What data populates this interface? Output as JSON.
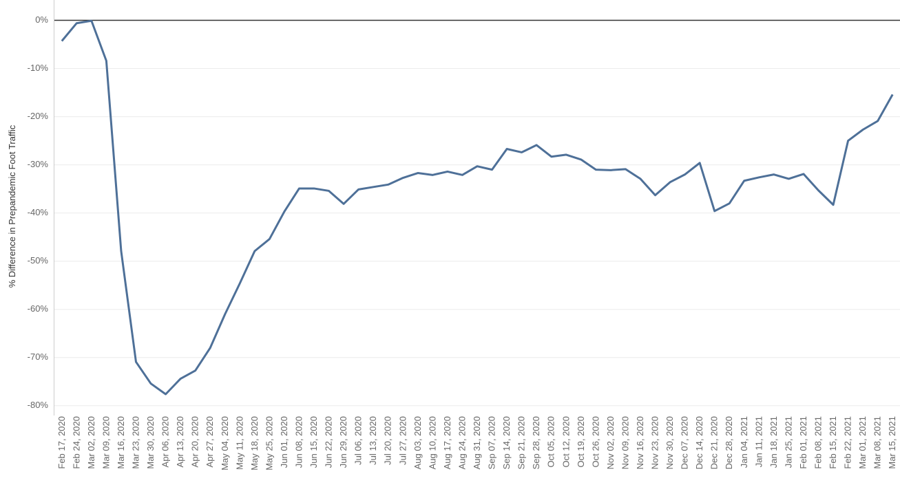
{
  "chart_data": {
    "type": "line",
    "y_label": "% Difference in Prepandemic Foot Traffic",
    "categories": [
      "Feb 17, 2020",
      "Feb 24, 2020",
      "Mar 02, 2020",
      "Mar 09, 2020",
      "Mar 16, 2020",
      "Mar 23, 2020",
      "Mar 30, 2020",
      "Apr 06, 2020",
      "Apr 13, 2020",
      "Apr 20, 2020",
      "Apr 27, 2020",
      "May 04, 2020",
      "May 11, 2020",
      "May 18, 2020",
      "May 25, 2020",
      "Jun 01, 2020",
      "Jun 08, 2020",
      "Jun 15, 2020",
      "Jun 22, 2020",
      "Jun 29, 2020",
      "Jul 06, 2020",
      "Jul 13, 2020",
      "Jul 20, 2020",
      "Jul 27, 2020",
      "Aug 03, 2020",
      "Aug 10, 2020",
      "Aug 17, 2020",
      "Aug 24, 2020",
      "Aug 31, 2020",
      "Sep 07, 2020",
      "Sep 14, 2020",
      "Sep 21, 2020",
      "Sep 28, 2020",
      "Oct 05, 2020",
      "Oct 12, 2020",
      "Oct 19, 2020",
      "Oct 26, 2020",
      "Nov 02, 2020",
      "Nov 09, 2020",
      "Nov 16, 2020",
      "Nov 23, 2020",
      "Nov 30, 2020",
      "Dec 07, 2020",
      "Dec 14, 2020",
      "Dec 21, 2020",
      "Dec 28, 2020",
      "Jan 04, 2021",
      "Jan 11, 2021",
      "Jan 18, 2021",
      "Jan 25, 2021",
      "Feb 01, 2021",
      "Feb 08, 2021",
      "Feb 15, 2021",
      "Feb 22, 2021",
      "Mar 01, 2021",
      "Mar 08, 2021",
      "Mar 15, 2021"
    ],
    "values": [
      -4.3,
      -0.6,
      -0.1,
      -8.4,
      -47.9,
      -70.9,
      -75.4,
      -77.6,
      -74.4,
      -72.7,
      -68,
      -61,
      -54.6,
      -47.9,
      -45.4,
      -39.7,
      -34.9,
      -34.9,
      -35.4,
      -38.1,
      -35.1,
      -34.6,
      -34.1,
      -32.7,
      -31.7,
      -32.1,
      -31.4,
      -32.1,
      -30.3,
      -31,
      -26.7,
      -27.4,
      -25.9,
      -28.3,
      -27.9,
      -28.9,
      -31,
      -31.1,
      -30.9,
      -32.9,
      -36.3,
      -33.6,
      -32,
      -29.6,
      -39.6,
      -38,
      -33.3,
      -32.6,
      -32,
      -32.9,
      -31.9,
      -35.3,
      -38.3,
      -25,
      -22.7,
      -20.9,
      -15.4
    ],
    "color": "#4e7098",
    "ylim": [
      -81.6,
      3.5
    ],
    "yticks": [
      {
        "value": 0,
        "label": "0%"
      },
      {
        "value": -10,
        "label": "-10%"
      },
      {
        "value": -20,
        "label": "-20%"
      },
      {
        "value": -30,
        "label": "-30%"
      },
      {
        "value": -40,
        "label": "-40%"
      },
      {
        "value": -50,
        "label": "-50%"
      },
      {
        "value": -60,
        "label": "-60%"
      },
      {
        "value": -70,
        "label": "-70%"
      },
      {
        "value": -80,
        "label": "-80%"
      }
    ],
    "grid": true
  }
}
